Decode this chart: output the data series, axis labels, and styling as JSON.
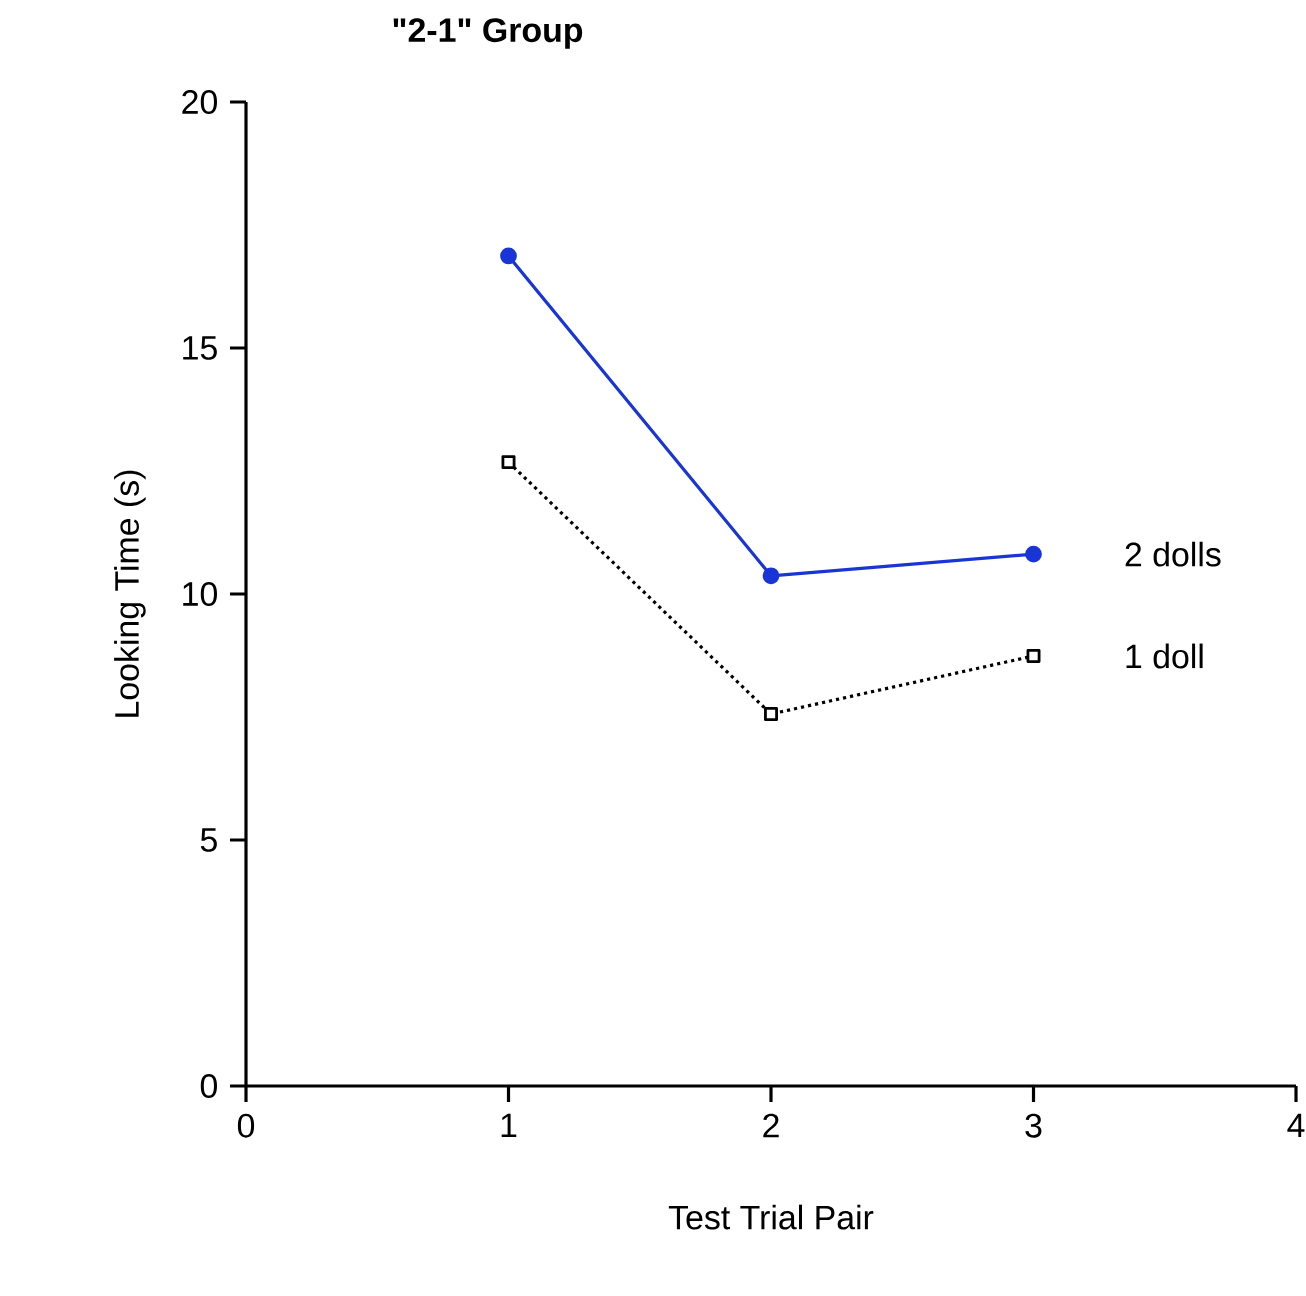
{
  "chart_data": {
    "type": "line",
    "title": "\"2-1\"  Group",
    "xlabel": "Test Trial Pair",
    "ylabel": "Looking Time (s)",
    "x": [
      1,
      2,
      3
    ],
    "series": [
      {
        "name": "2 dolls",
        "color": "#1a35d6",
        "values": [
          16.87,
          10.37,
          10.81
        ],
        "marker": "circle",
        "line_style": "solid"
      },
      {
        "name": "1 doll",
        "color": "#000000",
        "values": [
          12.68,
          7.56,
          8.74
        ],
        "marker": "square",
        "line_style": "dotted"
      }
    ],
    "xlim": [
      0,
      4
    ],
    "xticks": [
      0,
      1,
      2,
      3,
      4
    ],
    "ylim": [
      0,
      20
    ],
    "yticks": [
      0,
      5,
      10,
      15,
      20
    ],
    "grid": false
  }
}
